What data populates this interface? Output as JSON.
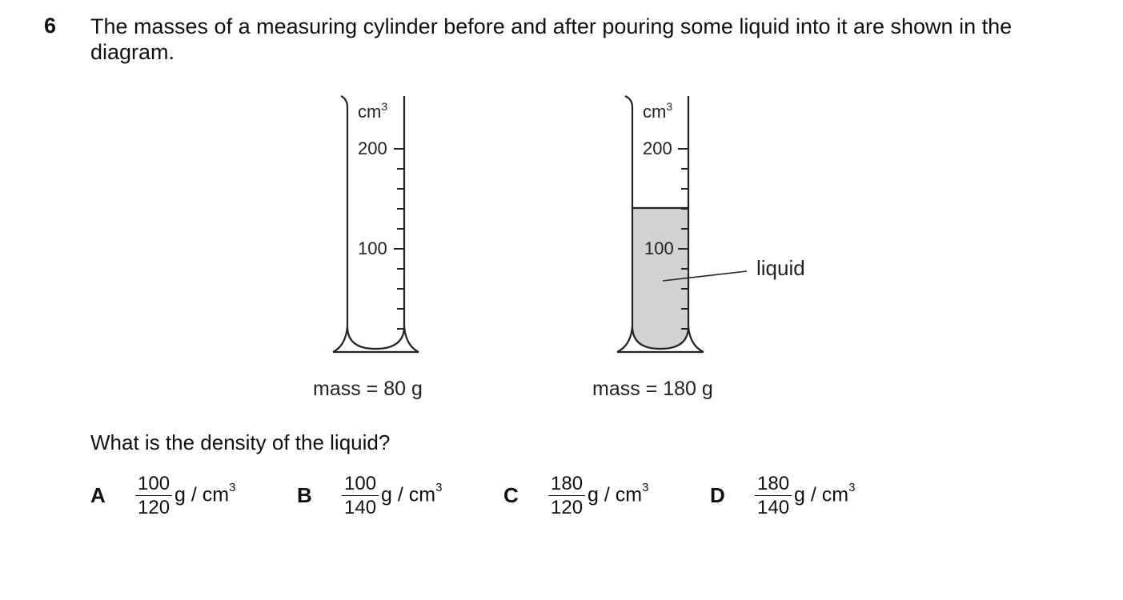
{
  "question": {
    "number": "6",
    "stem": "The masses of a measuring cylinder before and after pouring some liquid into it are shown in the diagram.",
    "prompt": "What is the density of the liquid?"
  },
  "cylinders": [
    {
      "unit_label": "cm",
      "unit_exp": "3",
      "scale_200": "200",
      "scale_100": "100",
      "mass_caption": "mass = 80 g"
    },
    {
      "unit_label": "cm",
      "unit_exp": "3",
      "scale_200": "200",
      "scale_100": "100",
      "mass_caption": "mass = 180 g",
      "liquid_label": "liquid",
      "liquid_level": 140
    }
  ],
  "colors": {
    "liquid_fill": "#d1d2d4",
    "ink": "#222222"
  },
  "options": [
    {
      "letter": "A",
      "numerator": "100",
      "denominator": "120",
      "unit": "g / cm",
      "unit_exp": "3"
    },
    {
      "letter": "B",
      "numerator": "100",
      "denominator": "140",
      "unit": "g / cm",
      "unit_exp": "3"
    },
    {
      "letter": "C",
      "numerator": "180",
      "denominator": "120",
      "unit": "g / cm",
      "unit_exp": "3"
    },
    {
      "letter": "D",
      "numerator": "180",
      "denominator": "140",
      "unit": "g / cm",
      "unit_exp": "3"
    }
  ]
}
